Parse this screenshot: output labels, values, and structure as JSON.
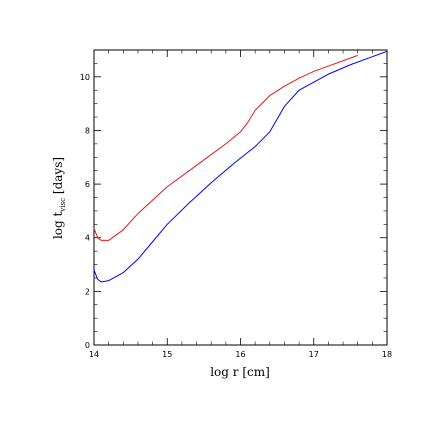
{
  "chart_data": {
    "type": "line",
    "xlabel": "log r [cm]",
    "ylabel": {
      "prefix": "log t",
      "subscript": "visc",
      "suffix": " [days]"
    },
    "xlim": [
      14,
      18
    ],
    "ylim": [
      0,
      11
    ],
    "xticks": [
      14,
      15,
      16,
      17,
      18
    ],
    "yticks": [
      0,
      2,
      4,
      6,
      8,
      10
    ],
    "grid": false,
    "series": [
      {
        "color": "#e41a1c",
        "x": [
          14.0,
          14.05,
          14.1,
          14.2,
          14.4,
          14.6,
          14.8,
          15.0,
          15.3,
          15.6,
          15.8,
          16.0,
          16.1,
          16.2,
          16.4,
          16.6,
          16.8,
          17.0,
          17.2,
          17.4,
          17.6
        ],
        "y": [
          4.35,
          4.0,
          3.9,
          3.9,
          4.3,
          4.9,
          5.4,
          5.9,
          6.5,
          7.1,
          7.5,
          7.95,
          8.3,
          8.75,
          9.3,
          9.65,
          9.95,
          10.2,
          10.4,
          10.6,
          10.8
        ]
      },
      {
        "color": "#0000ff",
        "x": [
          14.0,
          14.05,
          14.1,
          14.2,
          14.4,
          14.6,
          14.8,
          15.0,
          15.3,
          15.6,
          15.9,
          16.2,
          16.4,
          16.6,
          16.8,
          17.0,
          17.2,
          17.5,
          17.8,
          18.0
        ],
        "y": [
          2.8,
          2.45,
          2.35,
          2.4,
          2.7,
          3.2,
          3.85,
          4.5,
          5.3,
          6.05,
          6.75,
          7.4,
          7.95,
          8.9,
          9.5,
          9.8,
          10.1,
          10.45,
          10.75,
          10.95
        ]
      }
    ]
  }
}
